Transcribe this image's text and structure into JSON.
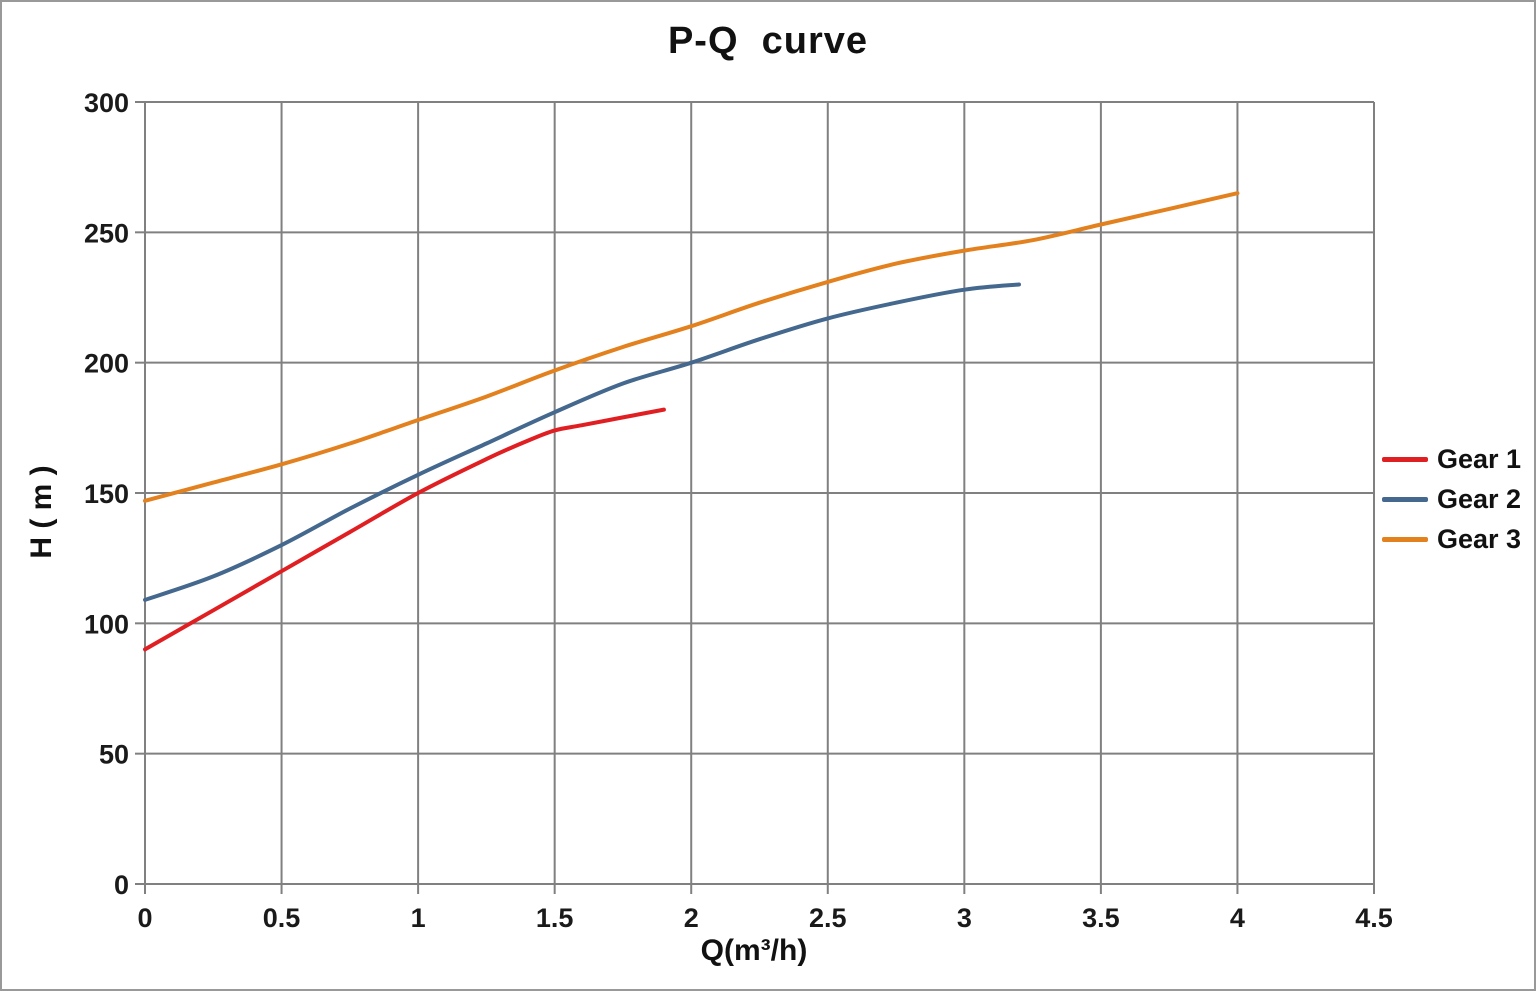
{
  "chart_data": {
    "type": "line",
    "title": "P-Q  curve",
    "xlabel": "Q(m³/h)",
    "ylabel": "H ( m )",
    "xlim": [
      0,
      4.5
    ],
    "ylim": [
      0,
      300
    ],
    "x_ticks": [
      0,
      0.5,
      1,
      1.5,
      2,
      2.5,
      3,
      3.5,
      4,
      4.5
    ],
    "y_ticks": [
      0,
      50,
      100,
      150,
      200,
      250,
      300
    ],
    "grid": true,
    "legend_position": "right-outside",
    "series": [
      {
        "name": "Gear 1",
        "color": "#e01f22",
        "points": [
          [
            0,
            90
          ],
          [
            0.25,
            105
          ],
          [
            0.5,
            120
          ],
          [
            0.75,
            135
          ],
          [
            1,
            150
          ],
          [
            1.25,
            163
          ],
          [
            1.4,
            170
          ],
          [
            1.5,
            174
          ],
          [
            1.6,
            176
          ],
          [
            1.75,
            179
          ],
          [
            1.9,
            182
          ]
        ]
      },
      {
        "name": "Gear 2",
        "color": "#44688e",
        "points": [
          [
            0,
            109
          ],
          [
            0.25,
            118
          ],
          [
            0.5,
            130
          ],
          [
            0.75,
            144
          ],
          [
            1,
            157
          ],
          [
            1.25,
            169
          ],
          [
            1.5,
            181
          ],
          [
            1.75,
            192
          ],
          [
            2,
            200
          ],
          [
            2.25,
            209
          ],
          [
            2.5,
            217
          ],
          [
            2.75,
            223
          ],
          [
            3,
            228
          ],
          [
            3.2,
            230
          ]
        ]
      },
      {
        "name": "Gear 3",
        "color": "#e2811e",
        "points": [
          [
            0,
            147
          ],
          [
            0.25,
            154
          ],
          [
            0.5,
            161
          ],
          [
            0.75,
            169
          ],
          [
            1,
            178
          ],
          [
            1.25,
            187
          ],
          [
            1.5,
            197
          ],
          [
            1.75,
            206
          ],
          [
            2,
            214
          ],
          [
            2.25,
            223
          ],
          [
            2.5,
            231
          ],
          [
            2.75,
            238
          ],
          [
            3,
            243
          ],
          [
            3.25,
            247
          ],
          [
            3.5,
            253
          ],
          [
            3.75,
            259
          ],
          [
            4,
            265
          ]
        ]
      }
    ]
  },
  "colors": {
    "gridline": "#808080",
    "axis": "#808080",
    "tick_text": "#1a1a1a",
    "background": "#ffffff"
  },
  "geometry_note": "plot area spans Q 0-4.5 and H 0-300 with gridlines every 0.5 and 50"
}
